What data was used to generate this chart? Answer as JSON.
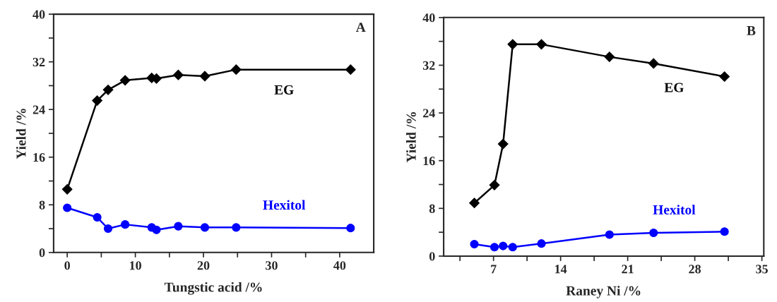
{
  "chart_data": [
    {
      "type": "line",
      "xlabel": "Tungstic acid /%",
      "ylabel": "Yield /%",
      "line_style": "solid",
      "grid": false,
      "legend": false,
      "xlim": [
        -2,
        45
      ],
      "ylim": [
        0,
        40
      ],
      "xticks": [
        0,
        {
          "value": 5,
          "label": null
        },
        10,
        {
          "value": 15,
          "label": null
        },
        20,
        {
          "value": 25,
          "label": null
        },
        30,
        {
          "value": 35,
          "label": null
        },
        40
      ],
      "yticks": [
        0,
        {
          "value": 4,
          "label": null
        },
        8,
        {
          "value": 12,
          "label": null
        },
        16,
        {
          "value": 20,
          "label": null
        },
        24,
        {
          "value": 28,
          "label": null
        },
        32,
        {
          "value": 36,
          "label": null
        },
        40
      ],
      "series": [
        {
          "name": "EG",
          "color": "#000000",
          "marker": "diamond",
          "x": [
            0,
            4.4,
            6.0,
            8.5,
            12.4,
            13.1,
            16.3,
            20.2,
            24.8,
            41.6
          ],
          "values": [
            10.6,
            25.5,
            27.3,
            28.9,
            29.3,
            29.2,
            29.8,
            29.6,
            30.7,
            30.7
          ]
        },
        {
          "name": "Hexitol",
          "color": "#0000ff",
          "marker": "circle",
          "x": [
            0,
            4.4,
            6.0,
            8.5,
            12.4,
            13.1,
            16.3,
            20.2,
            24.8,
            41.6
          ],
          "values": [
            7.5,
            5.9,
            4.0,
            4.7,
            4.2,
            3.8,
            4.4,
            4.2,
            4.2,
            4.1
          ]
        }
      ],
      "annotations": [
        "A"
      ]
    },
    {
      "type": "line",
      "xlabel": "Raney Ni /%",
      "ylabel": "Yield /%",
      "line_style": "solid",
      "grid": false,
      "legend": false,
      "xlim": [
        1.8,
        35.2
      ],
      "ylim": [
        0,
        40
      ],
      "xticks": [
        {
          "value": 3.5,
          "label": null
        },
        7,
        {
          "value": 10.5,
          "label": null
        },
        14,
        {
          "value": 17.5,
          "label": null
        },
        21,
        {
          "value": 24.5,
          "label": null
        },
        28,
        {
          "value": 31.5,
          "label": null
        },
        35
      ],
      "yticks": [
        0,
        {
          "value": 4,
          "label": null
        },
        8,
        {
          "value": 12,
          "label": null
        },
        16,
        {
          "value": 20,
          "label": null
        },
        24,
        {
          "value": 28,
          "label": null
        },
        32,
        {
          "value": 36,
          "label": null
        },
        40
      ],
      "series": [
        {
          "name": "EG",
          "color": "#000000",
          "marker": "diamond",
          "x": [
            5.0,
            7.1,
            8.0,
            9.0,
            12.0,
            19.1,
            23.7,
            31.1
          ],
          "values": [
            8.9,
            11.9,
            18.8,
            35.5,
            35.5,
            33.4,
            32.3,
            30.1
          ]
        },
        {
          "name": "Hexitol",
          "color": "#0000ff",
          "marker": "circle",
          "x": [
            5.0,
            7.1,
            8.0,
            9.0,
            12.0,
            19.1,
            23.7,
            31.1
          ],
          "values": [
            2.0,
            1.5,
            1.7,
            1.5,
            2.1,
            3.6,
            3.9,
            4.1
          ]
        }
      ],
      "annotations": [
        "B"
      ]
    }
  ]
}
